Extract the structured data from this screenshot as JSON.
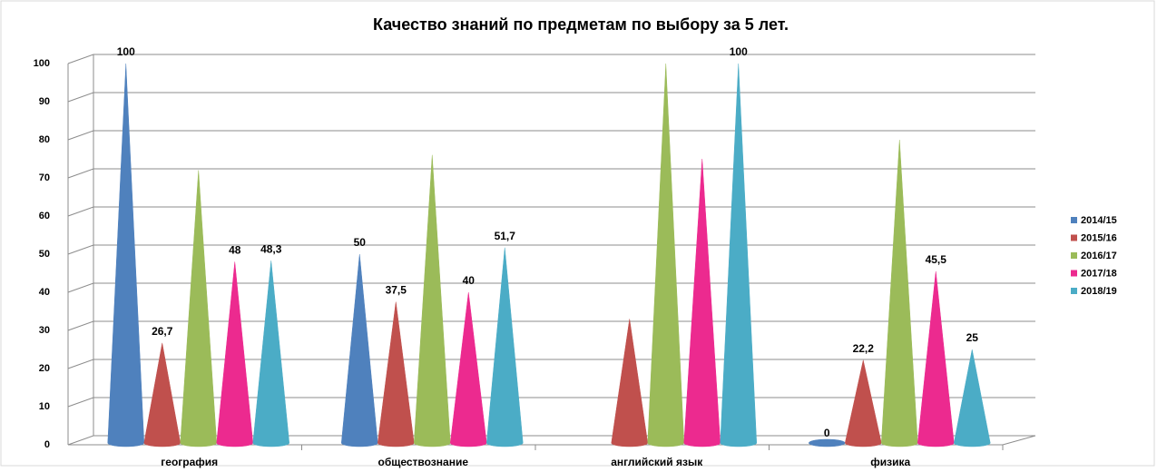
{
  "chart_data": {
    "type": "cone",
    "title": "Качество знаний по предметам по выбору за 5 лет.",
    "categories": [
      "география",
      "обществознание",
      "английский язык",
      "физика"
    ],
    "series": [
      {
        "name": "2014/15",
        "color": "#4f81bd",
        "values": [
          100,
          50,
          null,
          0
        ],
        "value_labels": [
          "100",
          "50",
          null,
          "0"
        ]
      },
      {
        "name": "2015/16",
        "color": "#c0504d",
        "values": [
          26.7,
          37.5,
          33,
          22.2
        ],
        "value_labels": [
          "26,7",
          "37,5",
          null,
          "22,2"
        ]
      },
      {
        "name": "2016/17",
        "color": "#9bbb59",
        "values": [
          72,
          76,
          100,
          80
        ],
        "value_labels": [
          null,
          null,
          null,
          null
        ]
      },
      {
        "name": "2017/18",
        "color": "#ec2a8f",
        "values": [
          48,
          40,
          75,
          45.5
        ],
        "value_labels": [
          "48",
          "40",
          null,
          "45,5"
        ]
      },
      {
        "name": "2018/19",
        "color": "#4bacc6",
        "values": [
          48.3,
          51.7,
          100,
          25
        ],
        "value_labels": [
          "48,3",
          "51,7",
          "100",
          "25"
        ]
      }
    ],
    "ylim": [
      0,
      100
    ],
    "yticks": [
      0,
      10,
      20,
      30,
      40,
      50,
      60,
      70,
      80,
      90,
      100
    ],
    "grid": true,
    "legend": "right"
  }
}
